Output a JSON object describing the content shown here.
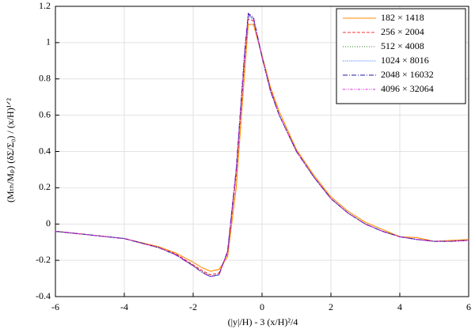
{
  "chart_data": {
    "type": "line",
    "xlabel": "(|y|/H) - 3 (x/H)²/4",
    "ylabel": "(Mₜₕ/Mₚ) (δΣ/Σ₀) / (x/H)¹ᐟ²",
    "x": [
      -6,
      -5,
      -4,
      -3,
      -2.5,
      -2,
      -1.75,
      -1.5,
      -1.25,
      -1,
      -0.75,
      -0.5,
      -0.4,
      -0.25,
      0,
      0.25,
      0.5,
      1,
      1.5,
      2,
      2.5,
      3,
      3.5,
      4,
      4.5,
      5,
      5.5,
      6
    ],
    "series": [
      {
        "name": "182 × 1418",
        "color": "#ff8c00",
        "dash": "none",
        "values": [
          -0.04,
          -0.06,
          -0.08,
          -0.125,
          -0.16,
          -0.21,
          -0.24,
          -0.26,
          -0.25,
          -0.18,
          0.2,
          0.85,
          1.1,
          1.1,
          0.93,
          0.75,
          0.62,
          0.41,
          0.27,
          0.15,
          0.07,
          0.01,
          -0.03,
          -0.07,
          -0.075,
          -0.095,
          -0.09,
          -0.085
        ]
      },
      {
        "name": "256 × 2004",
        "color": "#ff3030",
        "dash": "4,2",
        "values": [
          -0.04,
          -0.06,
          -0.08,
          -0.13,
          -0.165,
          -0.225,
          -0.255,
          -0.28,
          -0.27,
          -0.16,
          0.27,
          0.92,
          1.13,
          1.12,
          0.92,
          0.74,
          0.6,
          0.4,
          0.26,
          0.14,
          0.06,
          0.0,
          -0.04,
          -0.07,
          -0.085,
          -0.095,
          -0.095,
          -0.09
        ]
      },
      {
        "name": "512 × 4008",
        "color": "#208020",
        "dash": "1,2",
        "values": [
          -0.04,
          -0.06,
          -0.08,
          -0.13,
          -0.17,
          -0.23,
          -0.262,
          -0.287,
          -0.278,
          -0.152,
          0.29,
          0.94,
          1.145,
          1.13,
          0.92,
          0.73,
          0.6,
          0.4,
          0.26,
          0.14,
          0.06,
          0.0,
          -0.04,
          -0.07,
          -0.085,
          -0.095,
          -0.095,
          -0.09
        ]
      },
      {
        "name": "1024 × 8016",
        "color": "#2060ff",
        "dash": "1,1.5",
        "values": [
          -0.04,
          -0.06,
          -0.08,
          -0.13,
          -0.17,
          -0.23,
          -0.265,
          -0.29,
          -0.28,
          -0.15,
          0.3,
          0.95,
          1.15,
          1.13,
          0.92,
          0.73,
          0.6,
          0.4,
          0.26,
          0.14,
          0.06,
          0.0,
          -0.04,
          -0.07,
          -0.085,
          -0.095,
          -0.095,
          -0.09
        ]
      },
      {
        "name": "2048 × 16032",
        "color": "#1a1aa0",
        "dash": "6,2,1,2",
        "values": [
          -0.04,
          -0.06,
          -0.08,
          -0.13,
          -0.17,
          -0.23,
          -0.265,
          -0.29,
          -0.28,
          -0.15,
          0.3,
          0.96,
          1.16,
          1.14,
          0.92,
          0.73,
          0.6,
          0.4,
          0.26,
          0.14,
          0.06,
          0.0,
          -0.04,
          -0.07,
          -0.085,
          -0.095,
          -0.095,
          -0.09
        ]
      },
      {
        "name": "4096 × 32064",
        "color": "#e020e0",
        "dash": "3,1.5,1,1.5,1,1.5",
        "values": [
          -0.04,
          -0.06,
          -0.08,
          -0.13,
          -0.17,
          -0.23,
          -0.265,
          -0.29,
          -0.28,
          -0.15,
          0.3,
          0.955,
          1.155,
          1.135,
          0.92,
          0.73,
          0.6,
          0.4,
          0.26,
          0.14,
          0.06,
          0.0,
          -0.04,
          -0.07,
          -0.085,
          -0.095,
          -0.095,
          -0.09
        ]
      }
    ],
    "xlim": [
      -6,
      6
    ],
    "xticks": [
      -6,
      -4,
      -2,
      0,
      2,
      4,
      6
    ],
    "ylim": [
      -0.4,
      1.2
    ],
    "yticks": [
      -0.4,
      -0.2,
      0,
      0.2,
      0.4,
      0.6,
      0.8,
      1,
      1.2
    ],
    "grid": true,
    "legend": "upper right"
  }
}
